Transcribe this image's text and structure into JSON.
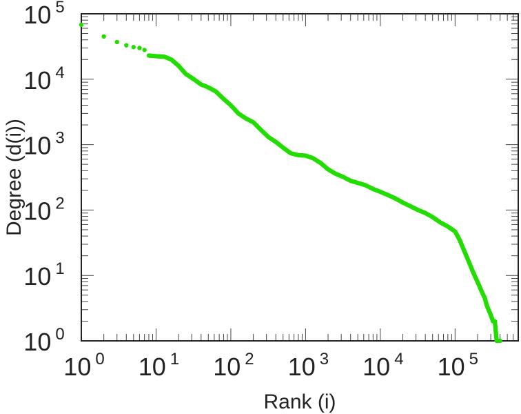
{
  "chart_data": {
    "type": "scatter",
    "xlabel": "Rank (i)",
    "ylabel": "Degree (d(i))",
    "x_scale": "log",
    "y_scale": "log",
    "xlim": [
      1,
      700000
    ],
    "ylim": [
      1,
      100000
    ],
    "x_ticks": [
      {
        "base": "10",
        "exp": "0",
        "value": 1
      },
      {
        "base": "10",
        "exp": "1",
        "value": 10
      },
      {
        "base": "10",
        "exp": "2",
        "value": 100
      },
      {
        "base": "10",
        "exp": "3",
        "value": 1000
      },
      {
        "base": "10",
        "exp": "4",
        "value": 10000
      },
      {
        "base": "10",
        "exp": "5",
        "value": 100000
      }
    ],
    "y_ticks": [
      {
        "base": "10",
        "exp": "0",
        "value": 1
      },
      {
        "base": "10",
        "exp": "1",
        "value": 10
      },
      {
        "base": "10",
        "exp": "2",
        "value": 100
      },
      {
        "base": "10",
        "exp": "3",
        "value": 1000
      },
      {
        "base": "10",
        "exp": "4",
        "value": 10000
      },
      {
        "base": "10",
        "exp": "5",
        "value": 100000
      }
    ],
    "grid": false,
    "legend": "none",
    "marker_color": "#22dd00",
    "series": [
      {
        "x": [
          1,
          2,
          3,
          4,
          5,
          6,
          7,
          8,
          10,
          13,
          16,
          20,
          25,
          32,
          40,
          50,
          63,
          80,
          100,
          126,
          160,
          200,
          250,
          320,
          400,
          500,
          630,
          800,
          1000,
          1260,
          1600,
          2000,
          2500,
          3200,
          4000,
          5000,
          6300,
          8000,
          10000,
          12600,
          16000,
          20000,
          25000,
          32000,
          40000,
          50000,
          63000,
          80000,
          100000,
          115000,
          130000,
          150000,
          170000,
          190000,
          210000,
          230000,
          250000,
          265000,
          280000,
          300000,
          320000,
          340000,
          360000,
          380000,
          400000
        ],
        "y": [
          68000,
          45000,
          37000,
          33000,
          31000,
          30000,
          28000,
          23000,
          22500,
          22000,
          20000,
          16000,
          12000,
          10000,
          8300,
          7500,
          6500,
          5000,
          4000,
          3000,
          2500,
          2200,
          1700,
          1300,
          1100,
          900,
          740,
          690,
          680,
          620,
          520,
          420,
          360,
          320,
          280,
          260,
          240,
          210,
          190,
          170,
          150,
          130,
          115,
          100,
          90,
          78,
          65,
          56,
          47,
          35,
          25,
          17,
          12,
          9,
          7,
          5.5,
          4.5,
          3.5,
          3,
          2.5,
          2,
          2,
          1,
          1,
          1
        ]
      }
    ]
  }
}
